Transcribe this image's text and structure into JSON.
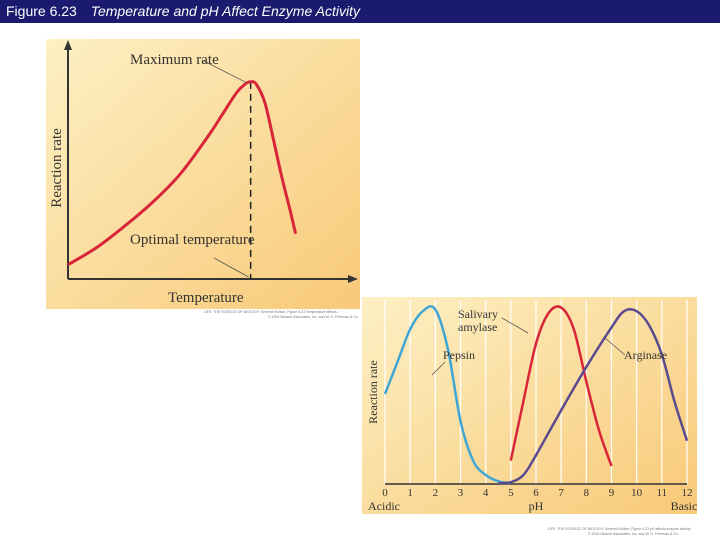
{
  "header": {
    "figure_number": "Figure 6.23",
    "caption": "Temperature and pH Affect Enzyme Activity"
  },
  "colors": {
    "title_bg": "#1a1a6e",
    "panel_bg_light": "#fdf0c4",
    "panel_bg_dark": "#f8c978",
    "curve_red": "#d8253a",
    "curve_blue": "#3fa6d4",
    "curve_purple": "#5a4a8e"
  },
  "chart_data": [
    {
      "type": "line",
      "title": "",
      "xlabel": "Temperature",
      "ylabel": "Reaction rate",
      "xlim": [
        0,
        10
      ],
      "ylim": [
        0,
        10
      ],
      "series": [
        {
          "name": "",
          "x": [
            0,
            1,
            2,
            3,
            4,
            5,
            5.5,
            6,
            6.3,
            6.5,
            6.7,
            7,
            7.3,
            7.6,
            7.9,
            8.1
          ],
          "y": [
            0.6,
            1.3,
            2.2,
            3.2,
            4.4,
            6.0,
            6.9,
            7.8,
            8.15,
            8.25,
            8.15,
            7.4,
            5.9,
            4.3,
            2.9,
            1.9
          ]
        }
      ],
      "annotations": {
        "maximum_rate": "Maximum rate",
        "optimal_temperature": "Optimal temperature"
      },
      "optimum_x": 6.5,
      "credit_lines": [
        "LIFE: THE SCIENCE OF BIOLOGY, Seventh Edition, Figure 6.23 Temperature affects...",
        "© 2004 Sinauer Associates, Inc. and W. H. Freeman & Co."
      ]
    },
    {
      "type": "line",
      "title": "",
      "xlabel": "pH",
      "ylabel": "Reaction rate",
      "xlim": [
        0,
        12
      ],
      "ylim": [
        0,
        10
      ],
      "x_ticks": [
        0,
        1,
        2,
        3,
        4,
        5,
        6,
        7,
        8,
        9,
        10,
        11,
        12
      ],
      "x_end_labels": {
        "left": "Acidic",
        "right": "Basic"
      },
      "grid": "vertical",
      "series": [
        {
          "name": "Pepsin",
          "x": [
            0,
            0.5,
            1,
            1.5,
            2,
            2.5,
            3,
            3.5,
            4,
            4.5,
            5
          ],
          "y": [
            5.0,
            6.8,
            8.6,
            9.6,
            9.7,
            7.5,
            3.5,
            1.3,
            0.5,
            0.15,
            0.05
          ]
        },
        {
          "name": "Salivary amylase",
          "x": [
            5,
            5.5,
            6,
            6.5,
            7,
            7.5,
            8,
            8.5,
            9
          ],
          "y": [
            1.3,
            4.6,
            7.8,
            9.5,
            9.8,
            8.6,
            5.7,
            3.0,
            1.0
          ]
        },
        {
          "name": "Arginase",
          "x": [
            4.5,
            5,
            5.5,
            6,
            7,
            8,
            9,
            9.5,
            10,
            10.5,
            11,
            11.5,
            12
          ],
          "y": [
            0.05,
            0.1,
            0.5,
            1.6,
            4.1,
            6.5,
            8.7,
            9.6,
            9.6,
            8.8,
            7.2,
            4.6,
            2.4
          ]
        }
      ],
      "labels": {
        "salivary_amylase": "Salivary amylase",
        "pepsin": "Pepsin",
        "arginase": "Arginase"
      },
      "credit_lines": [
        "LIFE: THE SCIENCE OF BIOLOGY, Seventh Edition, Figure 6.23 pH affects enzyme activity",
        "© 2004 Sinauer Associates, Inc. and W. H. Freeman & Co."
      ]
    }
  ]
}
